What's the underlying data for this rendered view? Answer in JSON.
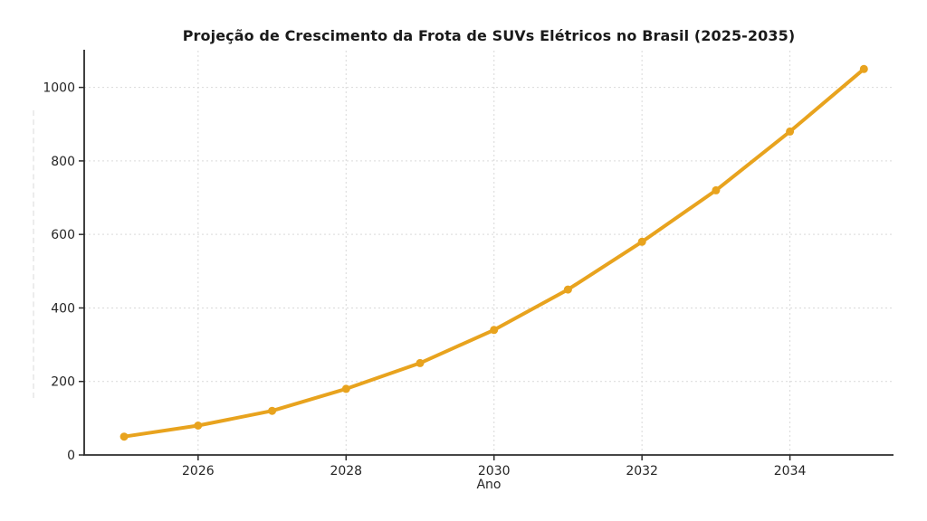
{
  "chart_data": {
    "type": "line",
    "title": "Projeção de Crescimento da Frota de SUVs Elétricos no Brasil (2025-2035)",
    "xlabel": "Ano",
    "ylabel": "",
    "x": [
      2025,
      2026,
      2027,
      2028,
      2029,
      2030,
      2031,
      2032,
      2033,
      2034,
      2035
    ],
    "series": [
      {
        "name": "Frota de SUVs elétricos",
        "values": [
          50,
          80,
          120,
          180,
          250,
          340,
          450,
          580,
          720,
          880,
          1050
        ]
      }
    ],
    "x_ticks": [
      2026,
      2028,
      2030,
      2032,
      2034
    ],
    "y_ticks": [
      0,
      200,
      400,
      600,
      800,
      1000
    ],
    "xlim": [
      2024.46,
      2035.4
    ],
    "ylim": [
      0,
      1100
    ],
    "grid": "dashed",
    "legend": "none",
    "colors": {
      "line": "#E8A31E",
      "marker": "#E8A31E",
      "grid": "#d9d9d9",
      "spine": "#2b2b2b",
      "tick_text": "#262626",
      "title_text": "#1a1a1a",
      "background": "#ffffff"
    }
  }
}
